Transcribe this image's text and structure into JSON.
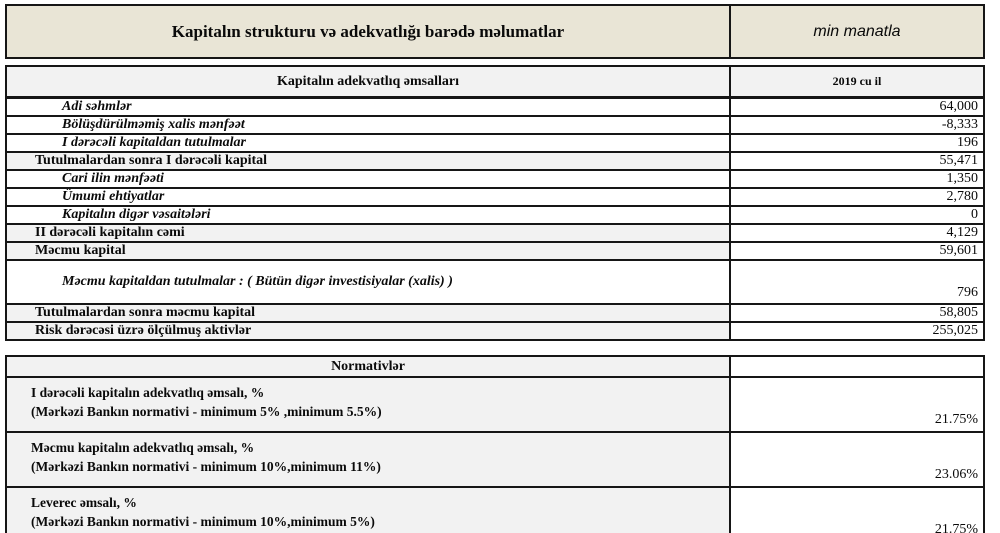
{
  "banner": {
    "title": "Kapitalın strukturu və adekvatlığı barədə  məlumatlar",
    "unit": "min manatla"
  },
  "capital_table": {
    "header": {
      "label": "Kapitalın adekvatlıq əmsalları",
      "year": "2019 cu il"
    },
    "rows": [
      {
        "label": "Adi səhmlər",
        "value": "64,000"
      },
      {
        "label": "Bölüşdürülməmiş xalis mənfəət",
        "value": "-8,333"
      },
      {
        "label": "I dərəcəli kapitaldan tutulmalar",
        "value": "196"
      },
      {
        "label": "Tutulmalardan sonra I dərəcəli kapital",
        "value": "55,471"
      },
      {
        "label": "Cari ilin mənfəəti",
        "value": "1,350"
      },
      {
        "label": "Ümumi ehtiyatlar",
        "value": "2,780"
      },
      {
        "label": "Kapitalın digər vəsaitələri",
        "value": "0"
      },
      {
        "label": "II dərəcəli kapitalın cəmi",
        "value": "4,129"
      },
      {
        "label": "Məcmu kapital",
        "value": "59,601"
      },
      {
        "label": "Məcmu kapitaldan tutulmalar : ( Bütün digər investisiyalar (xalis) )",
        "value": "796"
      },
      {
        "label": "Tutulmalardan sonra məcmu kapital",
        "value": "58,805"
      },
      {
        "label": "Risk dərəcəsi üzrə ölçülmuş aktivlər",
        "value": "255,025"
      }
    ]
  },
  "normatives_table": {
    "header": "Normativlər",
    "rows": [
      {
        "line1": "I dərəcəli kapitalın adekvatlıq əmsalı, %",
        "line2": "(Mərkəzi Bankın normativi - minimum 5% ,minimum 5.5%)",
        "value": "21.75%"
      },
      {
        "line1": "Məcmu kapitalın adekvatlıq əmsalı, %",
        "line2": "(Mərkəzi Bankın normativi - minimum 10%,minimum 11%)",
        "value": "23.06%"
      },
      {
        "line1": "Leverec əmsalı, %",
        "line2": "(Mərkəzi Bankın normativi - minimum 10%,minimum 5%)",
        "value": "21.75%"
      }
    ]
  },
  "colors": {
    "banner_background": "#e9e5d6",
    "shaded_row_background": "#f2f2f2",
    "border": "#161616"
  }
}
